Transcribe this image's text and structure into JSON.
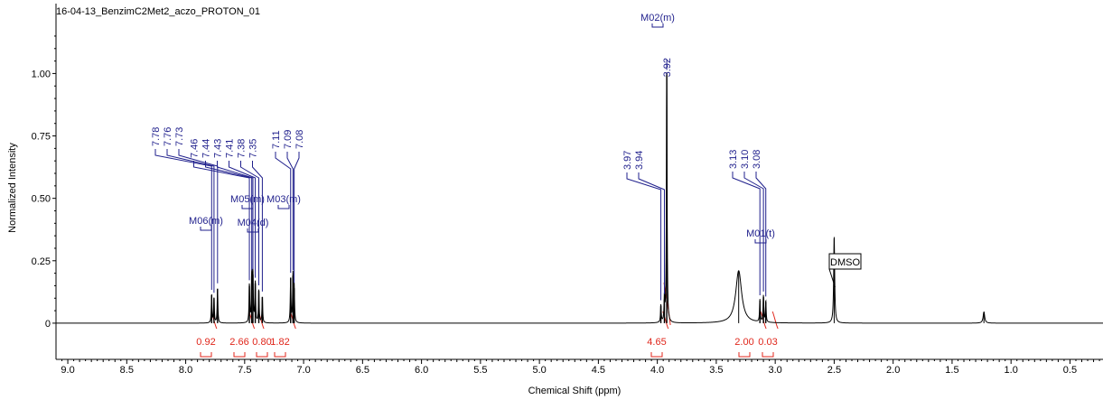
{
  "chart_data": {
    "type": "line",
    "title": "16-04-13_BenzimC2Met2_aczo_PROTON_01",
    "xlabel": "Chemical Shift (ppm)",
    "ylabel": "Normalized Intensity",
    "x_reversed": true,
    "xlim": [
      9.1,
      0.22
    ],
    "ylim": [
      -0.145,
      1.28
    ],
    "x_ticks": [
      "9.0",
      "8.5",
      "8.0",
      "7.5",
      "7.0",
      "6.5",
      "6.0",
      "5.5",
      "5.0",
      "4.5",
      "4.0",
      "3.5",
      "3.0",
      "2.5",
      "2.0",
      "1.5",
      "1.0",
      "0.5"
    ],
    "y_ticks": [
      "0",
      "0.25",
      "0.50",
      "0.75",
      "1.00"
    ],
    "y_tick_values": [
      0,
      0.25,
      0.5,
      0.75,
      1.0
    ],
    "colors": {
      "spectrum": "#000000",
      "peak_label": "#1f1f8c",
      "integral": "#e0261b"
    },
    "peaks": [
      {
        "ppm": 7.78,
        "height": 0.112,
        "label": "7.78"
      },
      {
        "ppm": 7.76,
        "height": 0.1,
        "label": "7.76"
      },
      {
        "ppm": 7.73,
        "height": 0.138,
        "label": "7.73"
      },
      {
        "ppm": 7.46,
        "height": 0.15,
        "label": "7.46"
      },
      {
        "ppm": 7.44,
        "height": 0.19,
        "label": "7.44"
      },
      {
        "ppm": 7.43,
        "height": 0.195,
        "label": "7.43"
      },
      {
        "ppm": 7.41,
        "height": 0.16,
        "label": "7.41"
      },
      {
        "ppm": 7.38,
        "height": 0.13,
        "label": "7.38"
      },
      {
        "ppm": 7.35,
        "height": 0.105,
        "label": "7.35"
      },
      {
        "ppm": 7.11,
        "height": 0.18,
        "label": "7.11"
      },
      {
        "ppm": 7.09,
        "height": 0.19,
        "label": "7.09"
      },
      {
        "ppm": 7.08,
        "height": 0.14,
        "label": "7.08"
      },
      {
        "ppm": 3.97,
        "height": 0.07,
        "label": "3.97"
      },
      {
        "ppm": 3.94,
        "height": 0.095,
        "label": "3.94"
      },
      {
        "ppm": 3.92,
        "height": 1.0,
        "label": "3.92"
      },
      {
        "ppm": 3.13,
        "height": 0.09,
        "label": "3.13"
      },
      {
        "ppm": 3.1,
        "height": 0.105,
        "label": "3.10"
      },
      {
        "ppm": 3.08,
        "height": 0.085,
        "label": "3.08"
      }
    ],
    "broad_peaks": [
      {
        "ppm": 3.31,
        "height": 0.21
      },
      {
        "ppm": 2.5,
        "height": 0.345
      },
      {
        "ppm": 1.23,
        "height": 0.045
      }
    ],
    "multiplets": [
      {
        "label": "M06(m)",
        "ppm": 7.76
      },
      {
        "label": "M05(m)",
        "ppm": 7.43
      },
      {
        "label": "M04(d)",
        "ppm": 7.37
      },
      {
        "label": "M03(m)",
        "ppm": 7.09
      },
      {
        "label": "M02(m)",
        "ppm": 3.93
      },
      {
        "label": "M01(t)",
        "ppm": 3.1
      }
    ],
    "integrals": [
      {
        "value": "0.92",
        "ppm": 7.76
      },
      {
        "value": "2.66",
        "ppm": 7.44
      },
      {
        "value": "0.80",
        "ppm": 7.36
      },
      {
        "value": "1.82",
        "ppm": 7.09
      },
      {
        "value": "4.65",
        "ppm": 3.93
      },
      {
        "value": "2.00",
        "ppm": 3.1
      },
      {
        "value": "0.03",
        "ppm": 3.0
      }
    ],
    "annotations": [
      {
        "text": "DMSO",
        "ppm": 2.5
      }
    ]
  }
}
